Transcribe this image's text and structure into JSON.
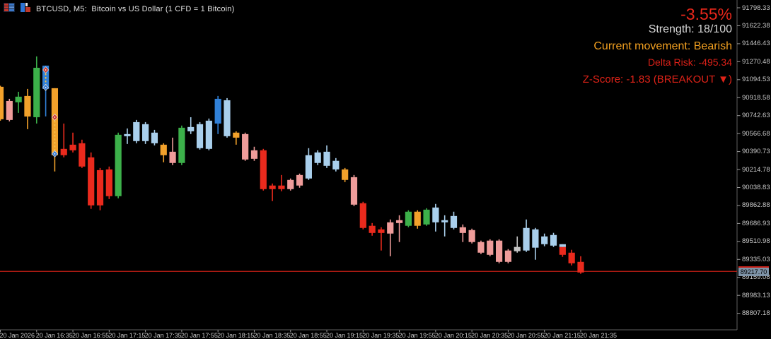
{
  "header": {
    "title": "BTCUSD, M5:  Bitcoin vs US Dollar (1 CFD = 1 Bitcoin)",
    "icons": [
      "market-watch-icon",
      "bar-chart-icon"
    ]
  },
  "overlay": {
    "change_pct": "-3.55%",
    "strength": "Strength: 18/100",
    "movement": "Current movement: Bearish",
    "delta_risk": "Delta Risk: -495.34",
    "z_score": "Z-Score: -1.83 (BREAKOUT ▼)",
    "colors": {
      "change_pct": "#e7271b",
      "strength": "#d6d6d6",
      "movement": "#f2a020",
      "delta_risk": "#d92018",
      "z_score": "#e02318"
    }
  },
  "price_axis": {
    "labels": [
      "91798.33",
      "91622.38",
      "91446.43",
      "91270.48",
      "91094.53",
      "90918.58",
      "90742.63",
      "90566.68",
      "90390.73",
      "90214.78",
      "90038.83",
      "89862.88",
      "89686.93",
      "89510.98",
      "89335.03",
      "89159.08",
      "88983.13",
      "88807.18"
    ],
    "current_price": "89217.70",
    "badge_bg": "#7e93a7"
  },
  "time_axis": {
    "labels": [
      "20 Jan 2026",
      "20 Jan 16:35",
      "20 Jan 16:55",
      "20 Jan 17:15",
      "20 Jan 17:35",
      "20 Jan 17:55",
      "20 Jan 18:15",
      "20 Jan 18:35",
      "20 Jan 18:55",
      "20 Jan 19:15",
      "20 Jan 19:35",
      "20 Jan 19:55",
      "20 Jan 20:15",
      "20 Jan 20:35",
      "20 Jan 20:55",
      "20 Jan 21:15",
      "20 Jan 21:35"
    ]
  },
  "chart_data": {
    "type": "candlestick",
    "symbol": "BTCUSD",
    "timeframe": "M5",
    "date": "20 Jan 2026",
    "grid": false,
    "background": "#000000",
    "y_axis": {
      "top_label": 91798.33,
      "label_step": 175.95
    },
    "price_line": {
      "price": 89217.7,
      "color": "#c51f16"
    },
    "colors": {
      "red": "#ea2a1d",
      "pink": "#ef9c9a",
      "green": "#3cb04a",
      "lightblue": "#a9cfec",
      "blue": "#3181d8",
      "orange": "#f2a12b",
      "gray": "#c4c4c4"
    },
    "candle_fields": [
      "time",
      "color",
      "high",
      "low",
      "body_top",
      "body_bottom"
    ],
    "candles": [
      [
        "16:15",
        "orange",
        91035,
        90693,
        91025,
        90707
      ],
      [
        "16:20",
        "pink",
        90907,
        90686,
        90886,
        90700
      ],
      [
        "16:25",
        "green",
        90976,
        90769,
        90928,
        90873
      ],
      [
        "16:30",
        "orange",
        91004,
        90610,
        90935,
        90734
      ],
      [
        "16:35",
        "green",
        91322,
        90665,
        91211,
        90727
      ],
      [
        "16:40",
        "blue",
        91232,
        90735,
        91232,
        91004
      ],
      [
        "16:45",
        "orange",
        91011,
        90196,
        91011,
        90355
      ],
      [
        "16:50",
        "red",
        90665,
        90334,
        90417,
        90355
      ],
      [
        "16:55",
        "red",
        90576,
        90382,
        90458,
        90403
      ],
      [
        "17:00",
        "red",
        90507,
        90230,
        90472,
        90244
      ],
      [
        "17:05",
        "red",
        90382,
        89830,
        90334,
        89864
      ],
      [
        "17:10",
        "red",
        90230,
        89816,
        90209,
        89864
      ],
      [
        "17:15",
        "red",
        90244,
        89926,
        90216,
        89954
      ],
      [
        "17:20",
        "green",
        90576,
        89933,
        90555,
        89954
      ],
      [
        "17:25",
        "lightblue",
        90617,
        90465,
        90562,
        90541
      ],
      [
        "17:30",
        "lightblue",
        90700,
        90472,
        90679,
        90493
      ],
      [
        "17:35",
        "lightblue",
        90679,
        90465,
        90659,
        90493
      ],
      [
        "17:40",
        "lightblue",
        90603,
        90451,
        90576,
        90472
      ],
      [
        "17:45",
        "orange",
        90472,
        90286,
        90458,
        90355
      ],
      [
        "17:50",
        "pink",
        90527,
        90258,
        90389,
        90279
      ],
      [
        "17:55",
        "green",
        90645,
        90258,
        90624,
        90279
      ],
      [
        "18:00",
        "lightblue",
        90727,
        90562,
        90631,
        90589
      ],
      [
        "18:05",
        "lightblue",
        90679,
        90410,
        90659,
        90424
      ],
      [
        "18:10",
        "lightblue",
        90714,
        90403,
        90693,
        90417
      ],
      [
        "18:15",
        "blue",
        90935,
        90562,
        90907,
        90665
      ],
      [
        "18:20",
        "lightblue",
        90914,
        90527,
        90893,
        90541
      ],
      [
        "18:25",
        "orange",
        90589,
        90458,
        90576,
        90527
      ],
      [
        "18:30",
        "pink",
        90576,
        90300,
        90562,
        90313
      ],
      [
        "18:35",
        "pink",
        90438,
        90300,
        90403,
        90320
      ],
      [
        "18:40",
        "red",
        90417,
        90009,
        90403,
        90023
      ],
      [
        "18:45",
        "red",
        90078,
        89906,
        90058,
        90023
      ],
      [
        "18:50",
        "red",
        90161,
        90002,
        90058,
        90023
      ],
      [
        "18:55",
        "pink",
        90127,
        90009,
        90113,
        90023
      ],
      [
        "19:00",
        "pink",
        90175,
        90037,
        90161,
        90058
      ],
      [
        "19:05",
        "lightblue",
        90424,
        90113,
        90355,
        90127
      ],
      [
        "19:10",
        "lightblue",
        90403,
        90258,
        90382,
        90279
      ],
      [
        "19:15",
        "lightblue",
        90451,
        90230,
        90389,
        90251
      ],
      [
        "19:20",
        "lightblue",
        90327,
        90196,
        90300,
        90216
      ],
      [
        "19:25",
        "orange",
        90230,
        90092,
        90216,
        90113
      ],
      [
        "19:30",
        "pink",
        90161,
        89857,
        90140,
        89871
      ],
      [
        "19:35",
        "red",
        89899,
        89629,
        89885,
        89643
      ],
      [
        "19:40",
        "red",
        89691,
        89567,
        89664,
        89594
      ],
      [
        "19:45",
        "red",
        89650,
        89422,
        89629,
        89594
      ],
      [
        "19:50",
        "pink",
        89726,
        89366,
        89698,
        89588
      ],
      [
        "19:55",
        "pink",
        89767,
        89505,
        89719,
        89691
      ],
      [
        "20:00",
        "green",
        89816,
        89650,
        89802,
        89664
      ],
      [
        "20:05",
        "orange",
        89816,
        89636,
        89802,
        89664
      ],
      [
        "20:10",
        "green",
        89836,
        89664,
        89822,
        89677
      ],
      [
        "20:15",
        "lightblue",
        89878,
        89608,
        89843,
        89698
      ],
      [
        "20:20",
        "lightblue",
        89767,
        89560,
        89719,
        89698
      ],
      [
        "20:25",
        "lightblue",
        89802,
        89629,
        89760,
        89643
      ],
      [
        "20:30",
        "pink",
        89677,
        89505,
        89650,
        89594
      ],
      [
        "20:35",
        "pink",
        89636,
        89491,
        89622,
        89505
      ],
      [
        "20:40",
        "pink",
        89519,
        89387,
        89505,
        89401
      ],
      [
        "20:45",
        "pink",
        89532,
        89366,
        89519,
        89380
      ],
      [
        "20:50",
        "pink",
        89532,
        89297,
        89519,
        89311
      ],
      [
        "20:55",
        "pink",
        89436,
        89297,
        89422,
        89311
      ],
      [
        "21:00",
        "gray",
        89560,
        89401,
        89457,
        89415
      ],
      [
        "21:05",
        "lightblue",
        89726,
        89408,
        89643,
        89422
      ],
      [
        "21:10",
        "lightblue",
        89643,
        89332,
        89629,
        89450
      ],
      [
        "21:15",
        "lightblue",
        89588,
        89464,
        89560,
        89484
      ],
      [
        "21:20",
        "lightblue",
        89595,
        89457,
        89574,
        89470
      ],
      [
        "21:25",
        "red",
        89484,
        89360,
        89457,
        89380
      ],
      [
        "21:30",
        "red",
        89429,
        89276,
        89401,
        89297
      ],
      [
        "21:35",
        "red",
        89366,
        89194,
        89311,
        89207
      ]
    ],
    "markers": [
      {
        "candle": 5,
        "shape": "diamond",
        "color": "#d2372c",
        "price": 91190
      },
      {
        "candle": 5,
        "shape": "diamond",
        "color": "#3a7fd5",
        "price": 91018
      },
      {
        "candle": 6,
        "shape": "diamond",
        "color": "#d2372c",
        "price": 90727
      },
      {
        "candle": 6,
        "shape": "diamond",
        "color": "#3a7fd5",
        "price": 90368
      }
    ],
    "dashed_ranges": [
      {
        "candle": 5,
        "from": 91190,
        "to": 91018,
        "color": "#f6c14a"
      },
      {
        "candle": 6,
        "from": 90727,
        "to": 90368,
        "color": "#f6c14a"
      }
    ],
    "caps": [
      {
        "candle": 62,
        "color": "lightblue",
        "from": 89484,
        "to": 89457
      }
    ]
  }
}
